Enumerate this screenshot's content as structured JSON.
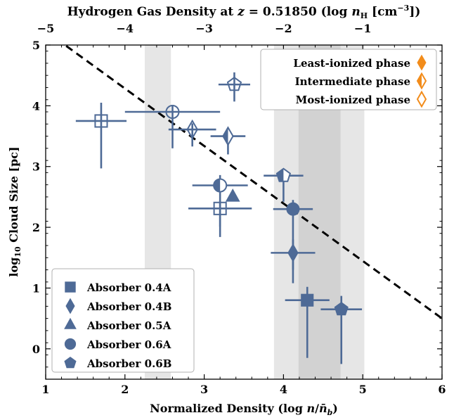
{
  "chart_data": {
    "type": "scatter",
    "title": "Hydrogen Gas Density at z = 0.51850 (log n_H [cm^-3])",
    "title_parts": {
      "lead": "Hydrogen Gas Density at ",
      "z": "z",
      "eq": " = 0.51850 (log ",
      "n": "n",
      "sub": "H",
      "unit": " [cm",
      "exp": "−3",
      "close": "])"
    },
    "xlabel": "Normalized Density (log n/n̄_b)",
    "xlabel_parts": {
      "lead": "Normalized Density (log ",
      "n": "n",
      "slash": "/",
      "nb": "n̄",
      "sub": "b",
      "close": ")"
    },
    "ylabel": "log10 Cloud Size [pc]",
    "ylabel_parts": {
      "log": "log",
      "sub": "10",
      "rest": " Cloud Size [pc]"
    },
    "xlim": [
      1,
      6
    ],
    "ylim": [
      -0.5,
      5
    ],
    "x_ticks": [
      1,
      2,
      3,
      4,
      5,
      6
    ],
    "y_ticks": [
      0,
      1,
      2,
      3,
      4,
      5
    ],
    "top_axis": {
      "label_offset": -6,
      "ticks": [
        -5,
        -4,
        -3,
        -2,
        -1
      ],
      "tick_labels": [
        "−5",
        "−4",
        "−3",
        "−2",
        "−1"
      ]
    },
    "color": "#4e6a96",
    "accent": "#f28c1b",
    "shaded_bands": [
      {
        "x": [
          2.25,
          2.58
        ],
        "color": "#e6e6e6"
      },
      {
        "x": [
          3.88,
          5.02
        ],
        "color": "#e6e6e6"
      },
      {
        "x": [
          4.19,
          4.72
        ],
        "color": "#d2d2d2"
      }
    ],
    "fit_line": {
      "style": "dashed",
      "x": [
        1.0,
        6.0
      ],
      "y": [
        5.23,
        0.5
      ]
    },
    "series": [
      {
        "name": "Absorber 0.4A",
        "marker": "square",
        "points": [
          {
            "x": 1.7,
            "y": 3.75,
            "xerr": 0.32,
            "yerr": [
              0.78,
              0.3
            ],
            "fill": "none"
          },
          {
            "x": 3.2,
            "y": 2.31,
            "xerr": 0.4,
            "yerr": [
              0.3,
              0.12
            ],
            "fill": "none"
          },
          {
            "x": 4.3,
            "y": 0.8,
            "xerr": 0.28,
            "yerr": [
              0.95,
              0.22
            ],
            "fill": "full"
          }
        ]
      },
      {
        "name": "Absorber 0.4B",
        "marker": "diamond",
        "points": [
          {
            "x": 2.85,
            "y": 3.61,
            "xerr": 0.3,
            "yerr": [
              0.28,
              0.1
            ],
            "fill": "none"
          },
          {
            "x": 3.3,
            "y": 3.5,
            "xerr": 0.22,
            "yerr": [
              0.3,
              0.1
            ],
            "fill": "half"
          },
          {
            "x": 4.12,
            "y": 1.58,
            "xerr": 0.28,
            "yerr": [
              0.5,
              0.22
            ],
            "fill": "full"
          }
        ]
      },
      {
        "name": "Absorber 0.5A",
        "marker": "triangle",
        "points": [
          {
            "x": 3.36,
            "y": 2.5,
            "xerr": 0,
            "yerr": [
              0,
              0
            ],
            "fill": "full"
          }
        ]
      },
      {
        "name": "Absorber 0.6A",
        "marker": "circle",
        "points": [
          {
            "x": 2.6,
            "y": 3.9,
            "xerr": 0.6,
            "yerr": [
              0.6,
              0.1
            ],
            "fill": "none"
          },
          {
            "x": 3.2,
            "y": 2.69,
            "xerr": 0.35,
            "yerr": [
              0.85,
              0.17
            ],
            "fill": "half"
          },
          {
            "x": 4.12,
            "y": 2.3,
            "xerr": 0.25,
            "yerr": [
              1.0,
              0.15
            ],
            "fill": "full"
          }
        ]
      },
      {
        "name": "Absorber 0.6B",
        "marker": "pentagon",
        "points": [
          {
            "x": 3.38,
            "y": 4.35,
            "xerr": 0.2,
            "yerr": [
              0.28,
              0.2
            ],
            "fill": "none"
          },
          {
            "x": 4.0,
            "y": 2.85,
            "xerr": 0.25,
            "yerr": [
              0.43,
              0.1
            ],
            "fill": "half"
          },
          {
            "x": 4.73,
            "y": 0.65,
            "xerr": 0.26,
            "yerr": [
              0.9,
              0.22
            ],
            "fill": "full"
          }
        ]
      }
    ],
    "legend_markers": {
      "placement": "lower-left",
      "entries": [
        "Absorber 0.4A",
        "Absorber 0.4B",
        "Absorber 0.5A",
        "Absorber 0.6A",
        "Absorber 0.6B"
      ]
    },
    "legend_phases": {
      "placement": "upper-right",
      "entries": [
        {
          "label": "Least-ionized phase",
          "fill": "full"
        },
        {
          "label": "Intermediate phase",
          "fill": "half"
        },
        {
          "label": "Most-ionized phase",
          "fill": "none"
        }
      ]
    }
  }
}
